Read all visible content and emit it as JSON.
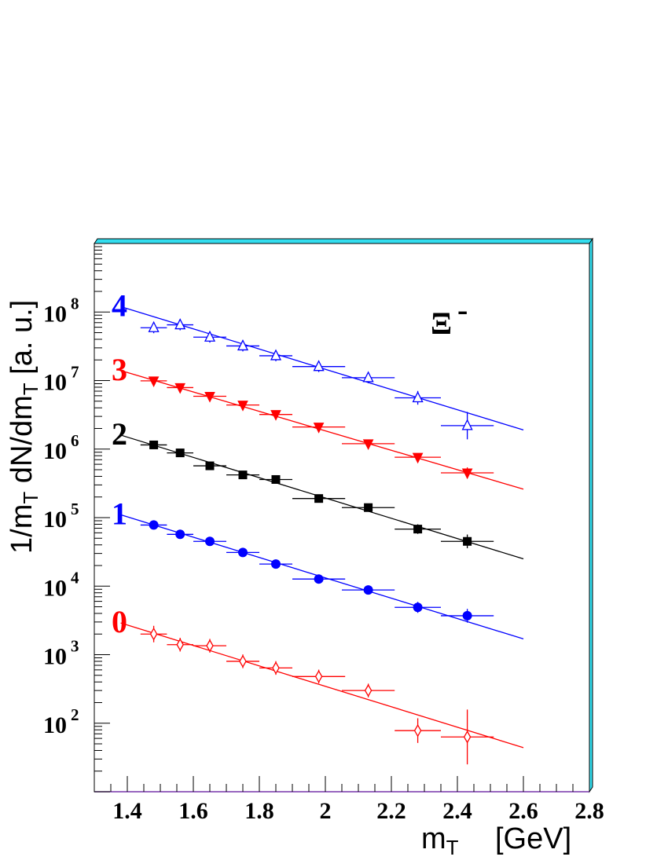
{
  "chart_data": {
    "type": "scatter",
    "title": "",
    "particle_label": "Ξ",
    "particle_charge": "-",
    "xlabel": {
      "main": "m",
      "sub": "T",
      "unit": "[GeV]"
    },
    "ylabel": {
      "p1": "1/m",
      "s1": "T",
      "p2": " dN/dm",
      "s2": "T",
      "unit": "  [a. u.]"
    },
    "xlim": [
      1.3,
      2.8
    ],
    "ylim": [
      10,
      1000000000.0
    ],
    "log_y": true,
    "grid": false,
    "x_ticks": [
      1.4,
      1.6,
      1.8,
      2,
      2.2,
      2.4,
      2.6,
      2.8
    ],
    "x_tick_labels": [
      "1.4",
      "1.6",
      "1.8",
      "2",
      "2.2",
      "2.4",
      "2.6",
      "2.8"
    ],
    "y_ticks": [
      {
        "value": 100,
        "base": "10",
        "exp": "2"
      },
      {
        "value": 1000,
        "base": "10",
        "exp": "3"
      },
      {
        "value": 10000,
        "base": "10",
        "exp": "4"
      },
      {
        "value": 100000,
        "base": "10",
        "exp": "5"
      },
      {
        "value": 1000000,
        "base": "10",
        "exp": "6"
      },
      {
        "value": 10000000,
        "base": "10",
        "exp": "7"
      },
      {
        "value": 100000000,
        "base": "10",
        "exp": "8"
      }
    ],
    "series": [
      {
        "name": "4",
        "color": "#0000ff",
        "marker": "open-triangle-up",
        "fit": {
          "x0": 1.38,
          "y0": 120000000.0,
          "x1": 2.6,
          "y1": 1900000.0
        },
        "points": [
          {
            "x": 1.48,
            "y": 59000000.0,
            "xerr": 0.04,
            "yerr": 0.08
          },
          {
            "x": 1.56,
            "y": 65000000.0,
            "xerr": 0.04,
            "yerr": 0.08
          },
          {
            "x": 1.65,
            "y": 43000000.0,
            "xerr": 0.05,
            "yerr": 0.08
          },
          {
            "x": 1.75,
            "y": 32000000.0,
            "xerr": 0.05,
            "yerr": 0.08
          },
          {
            "x": 1.85,
            "y": 23000000.0,
            "xerr": 0.05,
            "yerr": 0.08
          },
          {
            "x": 1.98,
            "y": 16000000.0,
            "xerr": 0.08,
            "yerr": 0.08
          },
          {
            "x": 2.13,
            "y": 11000000.0,
            "xerr": 0.08,
            "yerr": 0.08
          },
          {
            "x": 2.28,
            "y": 5600000.0,
            "xerr": 0.07,
            "yerr": 0.1
          },
          {
            "x": 2.43,
            "y": 2200000.0,
            "xerr": 0.08,
            "yerr": 0.2
          }
        ]
      },
      {
        "name": "3",
        "color": "#ff0000",
        "marker": "filled-triangle-down",
        "fit": {
          "x0": 1.38,
          "y0": 14000000.0,
          "x1": 2.6,
          "y1": 260000.0
        },
        "points": [
          {
            "x": 1.48,
            "y": 9900000.0,
            "xerr": 0.04,
            "yerr": 0.05
          },
          {
            "x": 1.56,
            "y": 7900000.0,
            "xerr": 0.04,
            "yerr": 0.05
          },
          {
            "x": 1.65,
            "y": 5900000.0,
            "xerr": 0.05,
            "yerr": 0.05
          },
          {
            "x": 1.75,
            "y": 4400000.0,
            "xerr": 0.05,
            "yerr": 0.05
          },
          {
            "x": 1.85,
            "y": 3200000.0,
            "xerr": 0.05,
            "yerr": 0.05
          },
          {
            "x": 1.98,
            "y": 2100000.0,
            "xerr": 0.08,
            "yerr": 0.05
          },
          {
            "x": 2.13,
            "y": 1200000.0,
            "xerr": 0.08,
            "yerr": 0.05
          },
          {
            "x": 2.28,
            "y": 760000.0,
            "xerr": 0.07,
            "yerr": 0.05
          },
          {
            "x": 2.43,
            "y": 450000.0,
            "xerr": 0.08,
            "yerr": 0.08
          }
        ]
      },
      {
        "name": "2",
        "color": "#000000",
        "marker": "filled-square",
        "fit": {
          "x0": 1.38,
          "y0": 1600000.0,
          "x1": 2.6,
          "y1": 25000.0
        },
        "points": [
          {
            "x": 1.48,
            "y": 1150000.0,
            "xerr": 0.04,
            "yerr": 0.05
          },
          {
            "x": 1.56,
            "y": 880000.0,
            "xerr": 0.04,
            "yerr": 0.05
          },
          {
            "x": 1.65,
            "y": 570000.0,
            "xerr": 0.05,
            "yerr": 0.05
          },
          {
            "x": 1.75,
            "y": 420000.0,
            "xerr": 0.05,
            "yerr": 0.05
          },
          {
            "x": 1.85,
            "y": 360000.0,
            "xerr": 0.05,
            "yerr": 0.05
          },
          {
            "x": 1.98,
            "y": 190000.0,
            "xerr": 0.08,
            "yerr": 0.05
          },
          {
            "x": 2.13,
            "y": 140000.0,
            "xerr": 0.08,
            "yerr": 0.05
          },
          {
            "x": 2.28,
            "y": 68000.0,
            "xerr": 0.07,
            "yerr": 0.07
          },
          {
            "x": 2.43,
            "y": 45000.0,
            "xerr": 0.08,
            "yerr": 0.1
          }
        ]
      },
      {
        "name": "1",
        "color": "#0000ff",
        "marker": "filled-circle",
        "fit": {
          "x0": 1.38,
          "y0": 110000.0,
          "x1": 2.6,
          "y1": 1700.0
        },
        "points": [
          {
            "x": 1.48,
            "y": 78000.0,
            "xerr": 0.04,
            "yerr": 0.05
          },
          {
            "x": 1.56,
            "y": 57000.0,
            "xerr": 0.04,
            "yerr": 0.05
          },
          {
            "x": 1.65,
            "y": 45000.0,
            "xerr": 0.05,
            "yerr": 0.05
          },
          {
            "x": 1.75,
            "y": 31000.0,
            "xerr": 0.05,
            "yerr": 0.05
          },
          {
            "x": 1.85,
            "y": 21000.0,
            "xerr": 0.05,
            "yerr": 0.05
          },
          {
            "x": 1.98,
            "y": 12700.0,
            "xerr": 0.08,
            "yerr": 0.05
          },
          {
            "x": 2.13,
            "y": 8800.0,
            "xerr": 0.08,
            "yerr": 0.05
          },
          {
            "x": 2.28,
            "y": 4900.0,
            "xerr": 0.07,
            "yerr": 0.08
          },
          {
            "x": 2.43,
            "y": 3700.0,
            "xerr": 0.08,
            "yerr": 0.1
          }
        ]
      },
      {
        "name": "0",
        "color": "#ff0000",
        "marker": "open-diamond",
        "fit": {
          "x0": 1.38,
          "y0": 2900.0,
          "x1": 2.6,
          "y1": 44
        },
        "points": [
          {
            "x": 1.48,
            "y": 2000,
            "xerr": 0.04,
            "yerr": 0.12
          },
          {
            "x": 1.56,
            "y": 1400,
            "xerr": 0.04,
            "yerr": 0.1
          },
          {
            "x": 1.65,
            "y": 1350,
            "xerr": 0.05,
            "yerr": 0.1
          },
          {
            "x": 1.75,
            "y": 800,
            "xerr": 0.05,
            "yerr": 0.1
          },
          {
            "x": 1.85,
            "y": 640,
            "xerr": 0.05,
            "yerr": 0.1
          },
          {
            "x": 1.98,
            "y": 480,
            "xerr": 0.08,
            "yerr": 0.1
          },
          {
            "x": 2.13,
            "y": 300,
            "xerr": 0.08,
            "yerr": 0.1
          },
          {
            "x": 2.28,
            "y": 78,
            "xerr": 0.07,
            "yerr": 0.18
          },
          {
            "x": 2.43,
            "y": 63,
            "xerr": 0.08,
            "yerr": 0.4
          }
        ]
      }
    ]
  }
}
